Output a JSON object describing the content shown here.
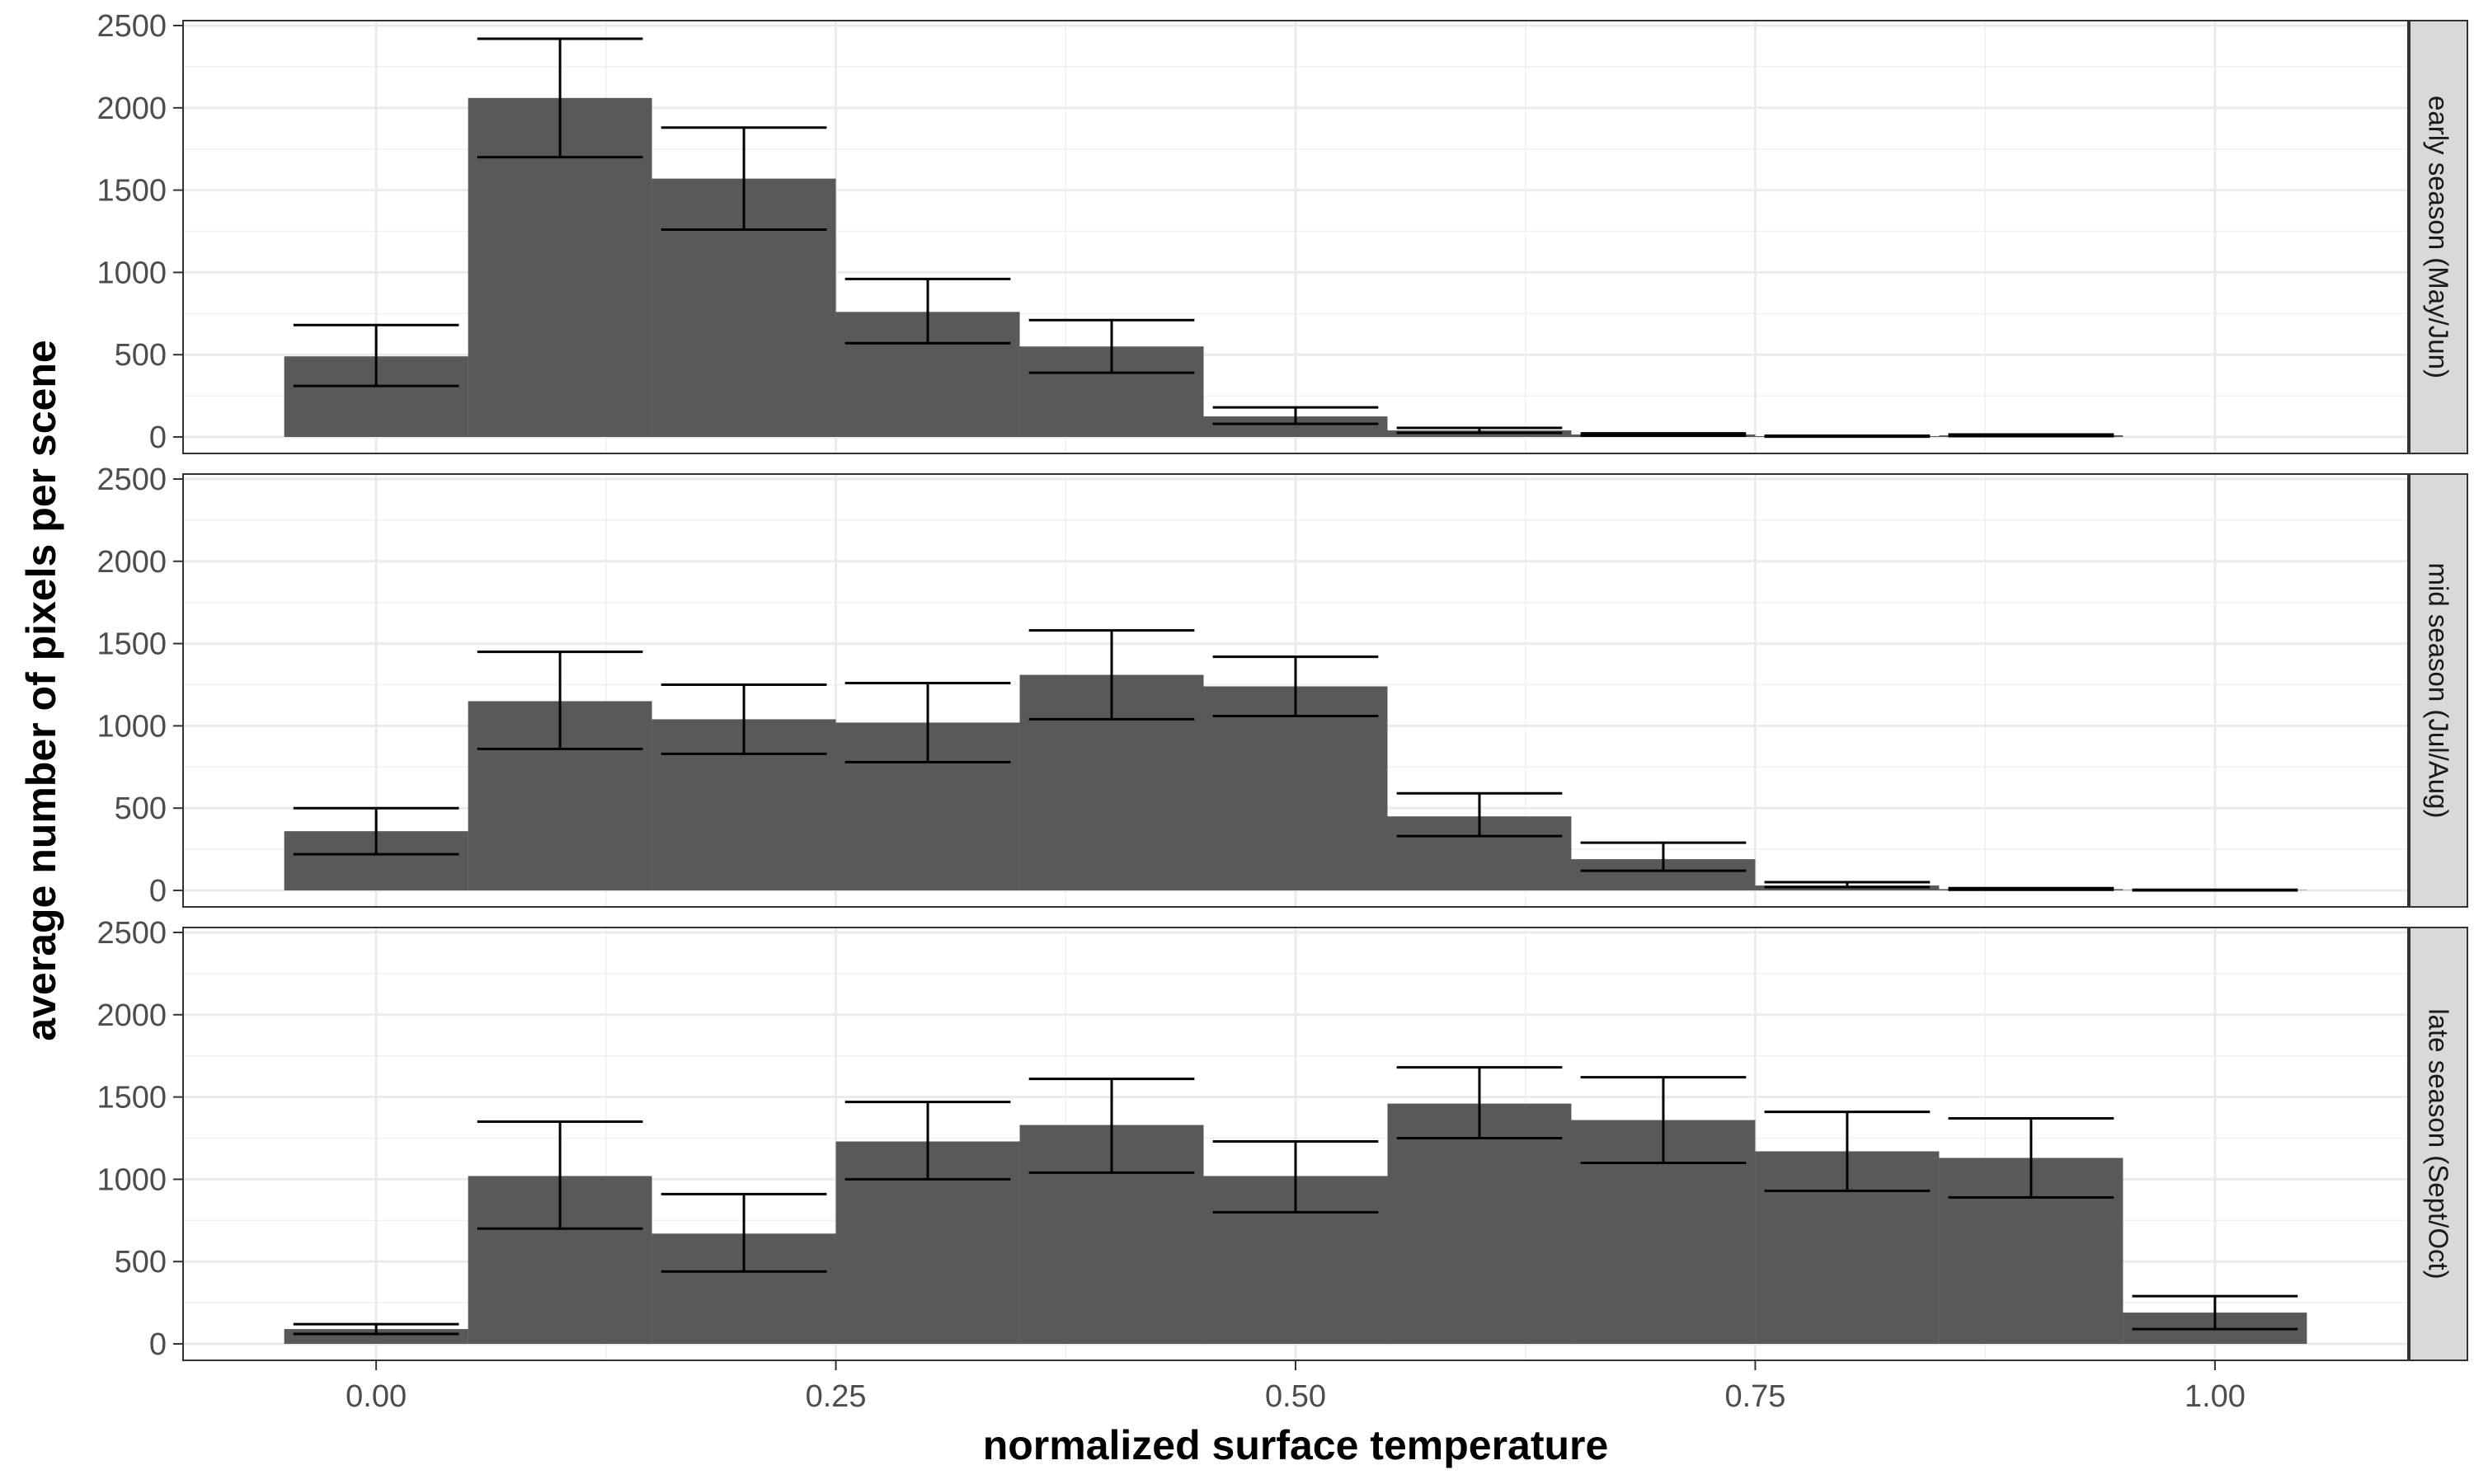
{
  "chart_data": {
    "type": "bar",
    "xlabel": "normalized surface temperature",
    "ylabel": "average number of pixels per scene",
    "x": [
      0.0,
      0.1,
      0.2,
      0.3,
      0.4,
      0.5,
      0.6,
      0.7,
      0.8,
      0.9,
      1.0
    ],
    "bin_width": 0.1,
    "xlim": [
      -0.105,
      1.105
    ],
    "ylim": [
      -100,
      2530
    ],
    "x_ticks": [
      0.0,
      0.25,
      0.5,
      0.75,
      1.0
    ],
    "x_tick_labels": [
      "0.00",
      "0.25",
      "0.50",
      "0.75",
      "1.00"
    ],
    "y_ticks": [
      0,
      500,
      1000,
      1500,
      2000,
      2500
    ],
    "y_tick_labels": [
      "0",
      "500",
      "1000",
      "1500",
      "2000",
      "2500"
    ],
    "grid": true,
    "bar_color": "#595959",
    "panels": [
      {
        "strip": "early season (May/Jun)",
        "values": [
          490,
          2060,
          1570,
          760,
          550,
          125,
          40,
          15,
          5,
          10,
          null
        ],
        "err_low": [
          310,
          1700,
          1260,
          570,
          390,
          80,
          25,
          8,
          2,
          5,
          null
        ],
        "err_high": [
          680,
          2420,
          1880,
          960,
          710,
          180,
          55,
          22,
          8,
          15,
          null
        ]
      },
      {
        "strip": "mid season (Jul/Aug)",
        "values": [
          360,
          1150,
          1040,
          1020,
          1310,
          1240,
          450,
          190,
          30,
          8,
          2
        ],
        "err_low": [
          220,
          860,
          830,
          780,
          1040,
          1060,
          330,
          120,
          20,
          4,
          0
        ],
        "err_high": [
          500,
          1450,
          1250,
          1260,
          1580,
          1420,
          590,
          290,
          50,
          14,
          4
        ]
      },
      {
        "strip": "late season (Sept/Oct)",
        "values": [
          90,
          1020,
          670,
          1230,
          1330,
          1020,
          1460,
          1360,
          1170,
          1130,
          190
        ],
        "err_low": [
          60,
          700,
          440,
          1000,
          1040,
          800,
          1250,
          1100,
          930,
          890,
          90
        ],
        "err_high": [
          120,
          1350,
          910,
          1470,
          1610,
          1230,
          1680,
          1620,
          1410,
          1370,
          290
        ]
      }
    ]
  }
}
